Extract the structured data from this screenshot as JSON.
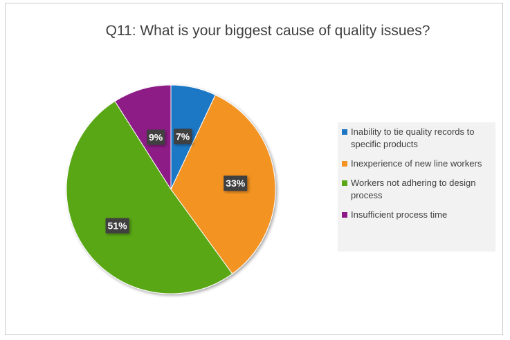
{
  "chart_data": {
    "type": "pie",
    "title": "Q11: What is your biggest cause of quality issues?",
    "categories": [
      "Inability to tie quality records to specific products",
      "Inexperience of new line workers",
      "Workers not adhering to design process",
      "Insufficient process time"
    ],
    "values": [
      7,
      33,
      51,
      9
    ],
    "data_labels": [
      "7%",
      "33%",
      "51%",
      "9%"
    ],
    "colors": [
      "#1f77c4",
      "#f39324",
      "#5aa717",
      "#8d1a86"
    ],
    "legend_position": "right",
    "start_angle_deg": 0,
    "direction": "clockwise"
  }
}
